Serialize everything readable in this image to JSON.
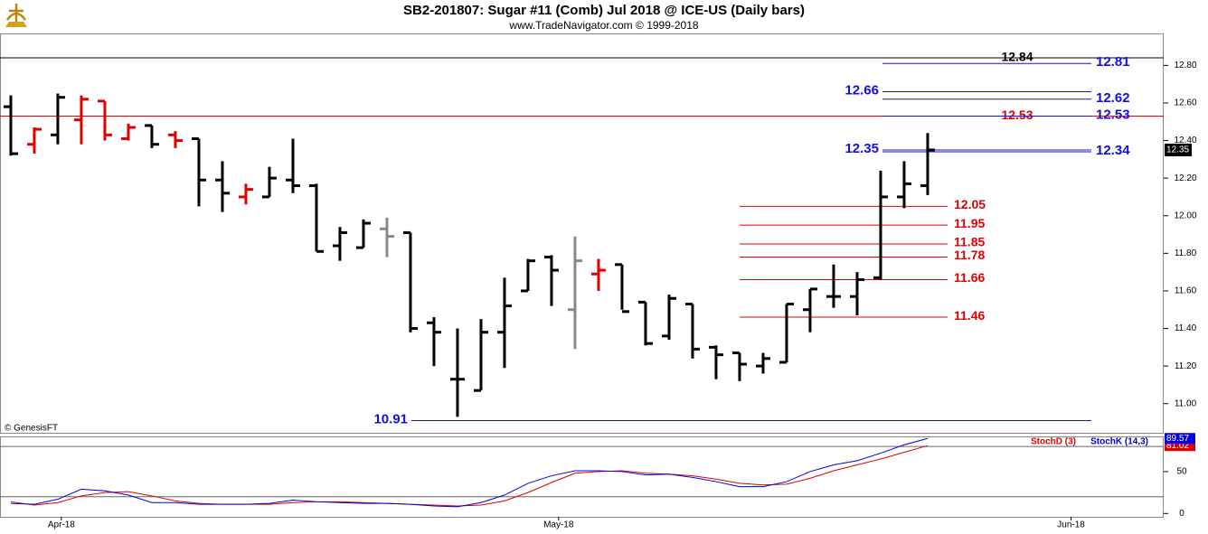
{
  "chart_data": [
    {
      "type": "ohlc",
      "title": "SB2-201807:  Sugar #11 (Comb) Jul 2018 @ ICE-US  (Daily bars)",
      "subtitle": "www.TradeNavigator.com © 1999-2018",
      "watermark": "© GenesisFT",
      "categories": [
        null,
        null,
        null,
        null,
        null,
        null,
        null,
        null,
        null,
        null,
        null,
        null,
        null,
        null,
        null,
        null,
        null,
        null,
        null,
        null,
        null,
        null,
        null,
        null,
        null,
        null,
        null,
        null,
        null,
        null,
        null,
        null,
        null,
        null,
        null,
        null,
        null,
        null,
        null,
        null
      ],
      "open": [
        12.58,
        12.38,
        12.43,
        12.51,
        12.61,
        12.41,
        12.48,
        12.43,
        12.41,
        12.19,
        12.1,
        12.1,
        12.19,
        12.16,
        11.84,
        11.83,
        11.93,
        11.91,
        11.43,
        11.13,
        11.07,
        11.38,
        11.6,
        11.78,
        11.5,
        11.69,
        11.74,
        11.54,
        11.36,
        11.53,
        11.3,
        11.27,
        11.2,
        11.22,
        11.5,
        11.57,
        11.57,
        11.67,
        12.1,
        12.16
      ],
      "high": [
        12.64,
        12.47,
        12.65,
        12.64,
        12.61,
        12.49,
        12.48,
        12.45,
        12.41,
        12.29,
        12.17,
        12.26,
        12.41,
        12.17,
        11.94,
        11.98,
        11.99,
        11.91,
        11.46,
        11.4,
        11.45,
        11.67,
        11.77,
        11.79,
        11.89,
        11.77,
        11.74,
        11.54,
        11.58,
        11.53,
        11.31,
        11.27,
        11.27,
        11.53,
        11.61,
        11.74,
        11.7,
        12.24,
        12.29,
        12.44
      ],
      "low": [
        12.32,
        12.33,
        12.38,
        12.38,
        12.4,
        12.4,
        12.36,
        12.36,
        12.05,
        12.02,
        12.06,
        12.1,
        12.12,
        11.81,
        11.76,
        11.83,
        11.78,
        11.38,
        11.2,
        10.93,
        11.07,
        11.19,
        11.6,
        11.52,
        11.29,
        11.6,
        11.5,
        11.31,
        11.34,
        11.24,
        11.13,
        11.12,
        11.16,
        11.22,
        11.38,
        11.51,
        11.47,
        11.66,
        12.04,
        12.11
      ],
      "close": [
        12.33,
        12.46,
        12.63,
        12.62,
        12.43,
        12.47,
        12.38,
        12.4,
        12.19,
        12.12,
        12.14,
        12.2,
        12.16,
        11.81,
        11.91,
        11.96,
        11.89,
        11.4,
        11.38,
        11.13,
        11.38,
        11.52,
        11.76,
        11.71,
        11.76,
        11.71,
        11.49,
        11.32,
        11.56,
        11.29,
        11.26,
        11.21,
        11.24,
        11.53,
        11.61,
        11.57,
        11.66,
        12.1,
        12.17,
        12.35
      ],
      "bar_colors": [
        "#000",
        "#e00000",
        "#000",
        "#e00000",
        "#e00000",
        "#e00000",
        "#000",
        "#e00000",
        "#000",
        "#000",
        "#e00000",
        "#000",
        "#000",
        "#000",
        "#000",
        "#000",
        "#888",
        "#000",
        "#000",
        "#000",
        "#000",
        "#000",
        "#000",
        "#000",
        "#888",
        "#e00000",
        "#000",
        "#000",
        "#000",
        "#000",
        "#000",
        "#000",
        "#000",
        "#000",
        "#000",
        "#000",
        "#000",
        "#000",
        "#000",
        "#000"
      ],
      "xlim": [
        -0.46,
        49.04
      ],
      "xticks": [
        {
          "value": 2.15,
          "label": "Apr-18"
        },
        {
          "value": 23.3,
          "label": "May-18"
        },
        {
          "value": 45.1,
          "label": "Jun-18"
        }
      ],
      "ylim": [
        10.84,
        12.97
      ],
      "yticks": [
        {
          "value": 11.0,
          "label": "11.00"
        },
        {
          "value": 11.2,
          "label": "11.20"
        },
        {
          "value": 11.4,
          "label": "11.40"
        },
        {
          "value": 11.6,
          "label": "11.60"
        },
        {
          "value": 11.8,
          "label": "11.80"
        },
        {
          "value": 12.0,
          "label": "12.00"
        },
        {
          "value": 12.2,
          "label": "12.20"
        },
        {
          "value": 12.4,
          "label": "12.40"
        },
        {
          "value": 12.6,
          "label": "12.60"
        },
        {
          "value": 12.8,
          "label": "12.80"
        }
      ],
      "last": 12.35,
      "levels": [
        {
          "value": 12.84,
          "color": "#000000",
          "span": "full",
          "label_pos": "inner"
        },
        {
          "value": 12.81,
          "color": "#1010dd",
          "span": "right",
          "label_pos": "right"
        },
        {
          "value": 12.66,
          "color": "#1010dd",
          "span": "right",
          "label_pos": "left"
        },
        {
          "value": 12.62,
          "color": "#1010dd",
          "span": "right",
          "label_pos": "right"
        },
        {
          "value": 12.53,
          "color": "#e00000",
          "span": "full",
          "label_pos": "inner"
        },
        {
          "value": 12.53,
          "color": "#1010dd",
          "span": "right",
          "label_pos": "right"
        },
        {
          "value": 12.35,
          "color": "#1010dd",
          "span": "right",
          "label_pos": "left"
        },
        {
          "value": 12.34,
          "color": "#1010dd",
          "span": "right",
          "label_pos": "right"
        },
        {
          "value": 12.05,
          "color": "#e00000",
          "span": "mid",
          "label_pos": "after"
        },
        {
          "value": 11.95,
          "color": "#e00000",
          "span": "mid",
          "label_pos": "after"
        },
        {
          "value": 11.85,
          "color": "#e00000",
          "span": "mid",
          "label_pos": "after"
        },
        {
          "value": 11.78,
          "color": "#e00000",
          "span": "mid",
          "label_pos": "after"
        },
        {
          "value": 11.66,
          "color": "#e00000",
          "span": "mid",
          "label_pos": "after"
        },
        {
          "value": 11.46,
          "color": "#e00000",
          "span": "mid",
          "label_pos": "after"
        },
        {
          "value": 10.91,
          "color": "#1010dd",
          "span": "wide",
          "label_pos": "left"
        }
      ]
    },
    {
      "type": "line",
      "series": [
        {
          "name": "StochD (3)",
          "color": "#e00000",
          "values": [
            14,
            10,
            13,
            21,
            25,
            26,
            21,
            15,
            12,
            11,
            11,
            11,
            13,
            14,
            14,
            13,
            12,
            11,
            10,
            9,
            10,
            15,
            25,
            37,
            48,
            50,
            51,
            48,
            47,
            45,
            41,
            36,
            34,
            35,
            42,
            51,
            58,
            65,
            73,
            81.02
          ]
        },
        {
          "name": "StochK (14,3)",
          "color": "#0000dd",
          "values": [
            12,
            11,
            17,
            29,
            27,
            22,
            13,
            13,
            11,
            11,
            11,
            12,
            16,
            14,
            13,
            12,
            12,
            11,
            9,
            8,
            13,
            22,
            36,
            45,
            51,
            51,
            50,
            46,
            47,
            43,
            38,
            32,
            32,
            38,
            50,
            58,
            63,
            72,
            82,
            89.57
          ]
        }
      ],
      "ylim": [
        -4,
        92
      ],
      "yticks": [
        0,
        50
      ],
      "levels": [
        20,
        80
      ]
    }
  ]
}
